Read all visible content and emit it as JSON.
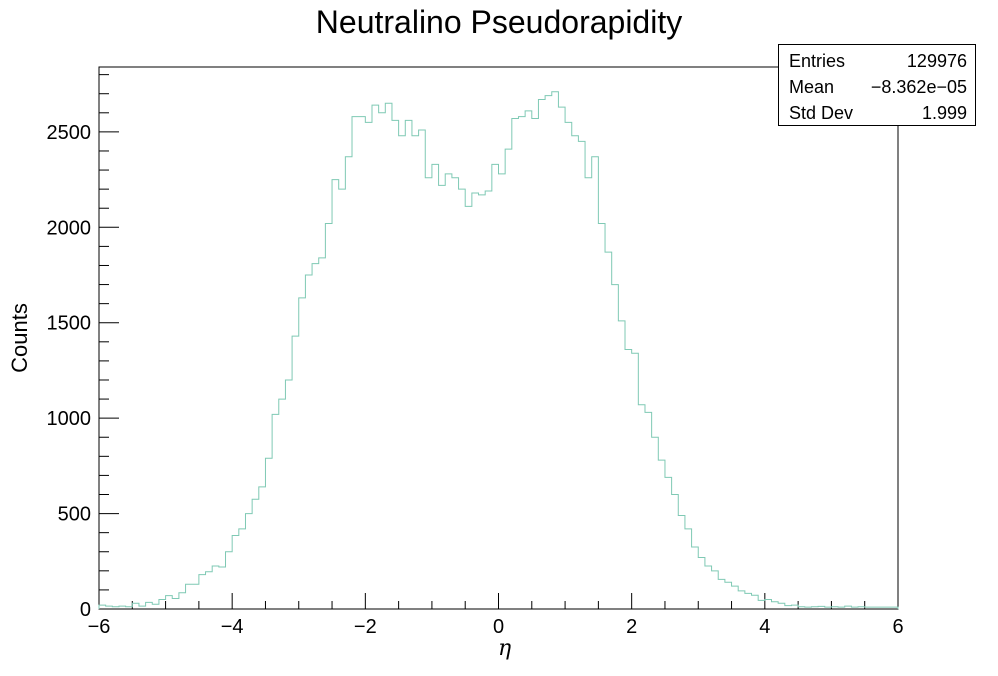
{
  "chart_data": {
    "type": "histogram",
    "title": "Neutralino Pseudorapidity",
    "xlabel": "η",
    "ylabel": "Counts",
    "xlim": [
      -6,
      6
    ],
    "ylim": [
      0,
      2840
    ],
    "line_color": "#7fc9b4",
    "grid": false,
    "legend": "none",
    "stats": {
      "entries_label": "Entries",
      "entries": "129976",
      "mean_label": "Mean",
      "mean": "−8.362e−05",
      "stddev_label": "Std Dev",
      "stddev": "1.999"
    },
    "x_ticks": [
      "−6",
      "−4",
      "−2",
      "0",
      "2",
      "4",
      "6"
    ],
    "y_ticks": [
      "0",
      "500",
      "1000",
      "1500",
      "2000",
      "2500"
    ],
    "bins": {
      "x_min": -6,
      "x_max": 6,
      "count": 120,
      "values": [
        20,
        15,
        12,
        15,
        12,
        30,
        15,
        35,
        25,
        50,
        70,
        55,
        85,
        130,
        130,
        180,
        195,
        225,
        220,
        300,
        385,
        420,
        500,
        575,
        640,
        790,
        1020,
        1100,
        1200,
        1430,
        1630,
        1750,
        1810,
        1840,
        2020,
        2250,
        2200,
        2370,
        2580,
        2580,
        2550,
        2640,
        2600,
        2650,
        2560,
        2480,
        2560,
        2480,
        2510,
        2260,
        2330,
        2220,
        2280,
        2260,
        2200,
        2110,
        2180,
        2170,
        2190,
        2330,
        2280,
        2410,
        2570,
        2580,
        2610,
        2570,
        2670,
        2690,
        2710,
        2630,
        2550,
        2480,
        2450,
        2260,
        2370,
        2020,
        1870,
        1700,
        1510,
        1360,
        1340,
        1070,
        1030,
        900,
        780,
        690,
        600,
        490,
        420,
        325,
        270,
        225,
        200,
        155,
        140,
        120,
        95,
        82,
        72,
        45,
        50,
        38,
        30,
        18,
        20,
        12,
        10,
        12,
        14,
        10,
        12,
        10,
        15,
        10,
        12,
        10,
        10,
        10,
        10,
        10
      ]
    }
  }
}
